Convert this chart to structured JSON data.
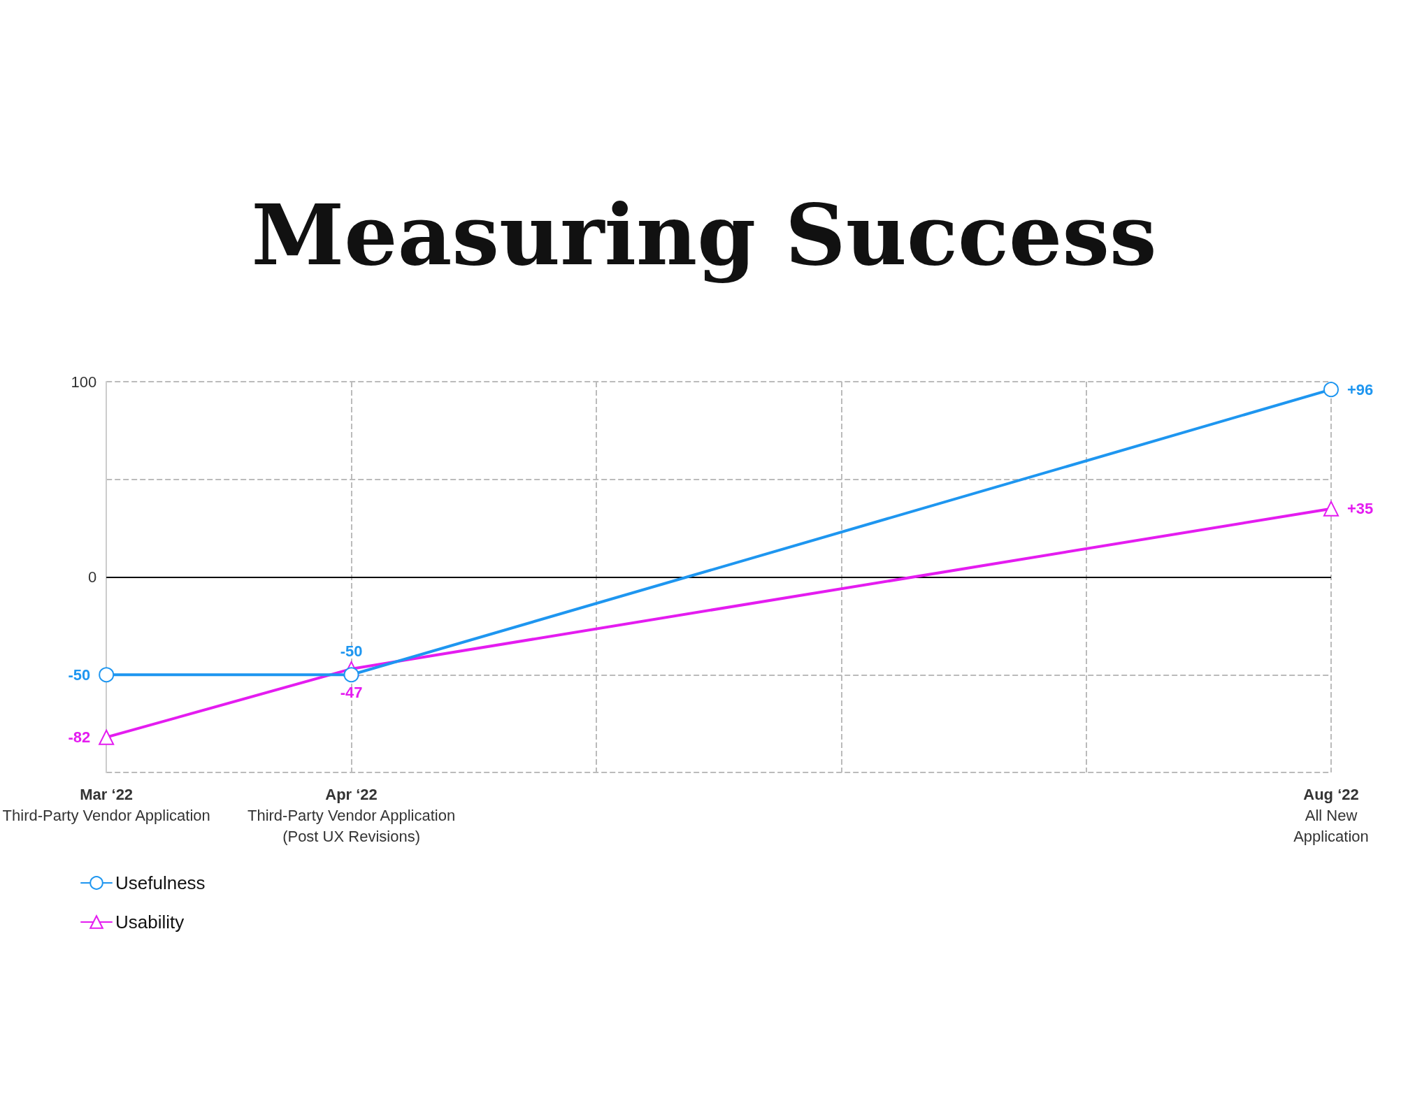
{
  "chart_data": {
    "type": "line",
    "title": "Measuring Success",
    "categories": [
      "Mar ‘22\nThird-Party Vendor Application",
      "Apr ‘22\nThird-Party Vendor Application\n(Post UX Revisions)",
      null,
      null,
      null,
      "Aug ‘22\nAll New\nApplication"
    ],
    "series": [
      {
        "name": "Usefulness",
        "color": "#1e96f0",
        "marker": "circle",
        "values": [
          -50,
          -50,
          null,
          null,
          null,
          96
        ],
        "value_labels": [
          "-50",
          "-50",
          null,
          null,
          null,
          "+96"
        ]
      },
      {
        "name": "Usability",
        "color": "#e41cf0",
        "marker": "triangle",
        "values": [
          -82,
          -47,
          null,
          null,
          null,
          35
        ],
        "value_labels": [
          "-82",
          "-47",
          null,
          null,
          null,
          "+35"
        ]
      }
    ],
    "ylim": [
      -100,
      100
    ],
    "yticks": [
      {
        "value": -100,
        "label": null
      },
      {
        "value": -50,
        "label": null
      },
      0,
      {
        "value": 50,
        "label": null
      },
      100
    ],
    "ref_lines": [
      {
        "axis": "y",
        "value": 0,
        "color": "#000000"
      }
    ],
    "grid": true,
    "legend": "bottom left"
  }
}
